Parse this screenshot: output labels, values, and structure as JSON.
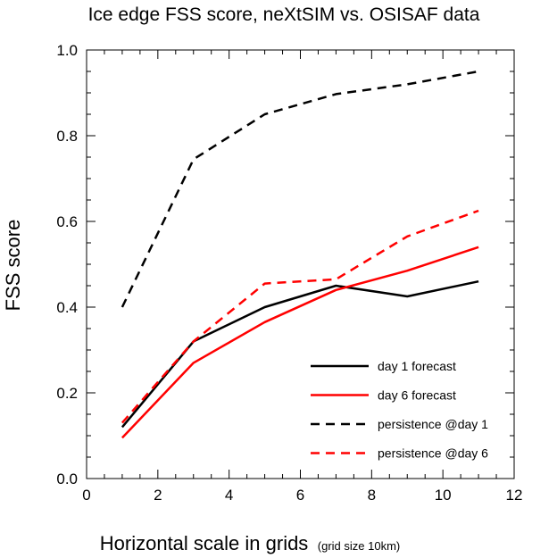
{
  "chart_data": {
    "type": "line",
    "title": "Ice edge FSS score, neXtSIM vs. OSISAF data",
    "xlabel": "Horizontal scale in grids",
    "xlabel_note": "(grid size 10km)",
    "ylabel": "FSS score",
    "xlim": [
      0,
      12
    ],
    "ylim": [
      0,
      1
    ],
    "x_ticks": [
      0,
      2,
      4,
      6,
      8,
      10,
      12
    ],
    "x_tick_labels": [
      "0",
      "2",
      "4",
      "6",
      "8",
      "10",
      "12"
    ],
    "y_ticks": [
      0,
      0.2,
      0.4,
      0.6,
      0.8,
      1.0
    ],
    "y_tick_labels": [
      "0.0",
      "0.2",
      "0.4",
      "0.6",
      "0.8",
      "1.0"
    ],
    "grid": false,
    "legend_position": "bottom-right",
    "x": [
      1,
      3,
      5,
      7,
      9,
      11
    ],
    "series": [
      {
        "name": "day 1 forecast",
        "color": "#000000",
        "dash": "solid",
        "values": [
          0.12,
          0.32,
          0.4,
          0.45,
          0.425,
          0.46
        ]
      },
      {
        "name": "day 6 forecast",
        "color": "#ff0000",
        "dash": "solid",
        "values": [
          0.095,
          0.27,
          0.365,
          0.44,
          0.485,
          0.54
        ]
      },
      {
        "name": "persistence @day 1",
        "color": "#000000",
        "dash": "dashed",
        "values": [
          0.4,
          0.745,
          0.85,
          0.897,
          0.92,
          0.95
        ]
      },
      {
        "name": "persistence @day 6",
        "color": "#ff0000",
        "dash": "dashed",
        "values": [
          0.13,
          0.32,
          0.455,
          0.465,
          0.565,
          0.625
        ]
      }
    ]
  }
}
